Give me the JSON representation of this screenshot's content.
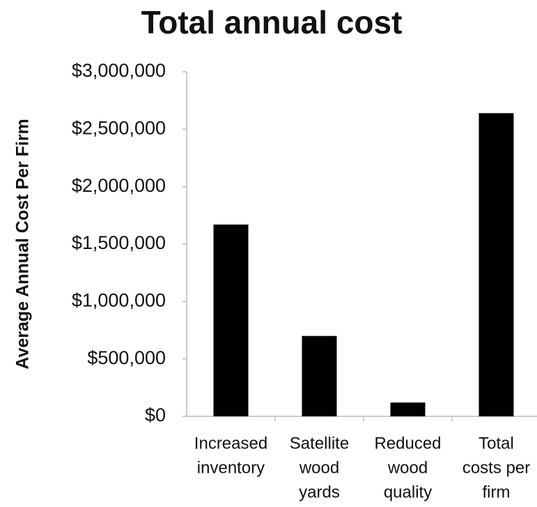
{
  "chart_data": {
    "type": "bar",
    "title": "Total annual cost",
    "y_label": "Average Annual Cost Per Firm",
    "categories": [
      [
        "Increased",
        "inventory"
      ],
      [
        "Satellite",
        "wood",
        "yards"
      ],
      [
        "Reduced",
        "wood",
        "quality"
      ],
      [
        "Total",
        "costs per",
        "firm"
      ]
    ],
    "values": [
      1670000,
      700000,
      120000,
      2640000
    ],
    "color": "#000000",
    "ylim": [
      0,
      3000000
    ],
    "yticks": [
      {
        "value": 0,
        "label": "$0"
      },
      {
        "value": 500000,
        "label": "$500,000"
      },
      {
        "value": 1000000,
        "label": "$1,000,000"
      },
      {
        "value": 1500000,
        "label": "$1,500,000"
      },
      {
        "value": 2000000,
        "label": "$2,000,000"
      },
      {
        "value": 2500000,
        "label": "$2,500,000"
      },
      {
        "value": 3000000,
        "label": "$3,000,000"
      }
    ],
    "grid": false
  }
}
